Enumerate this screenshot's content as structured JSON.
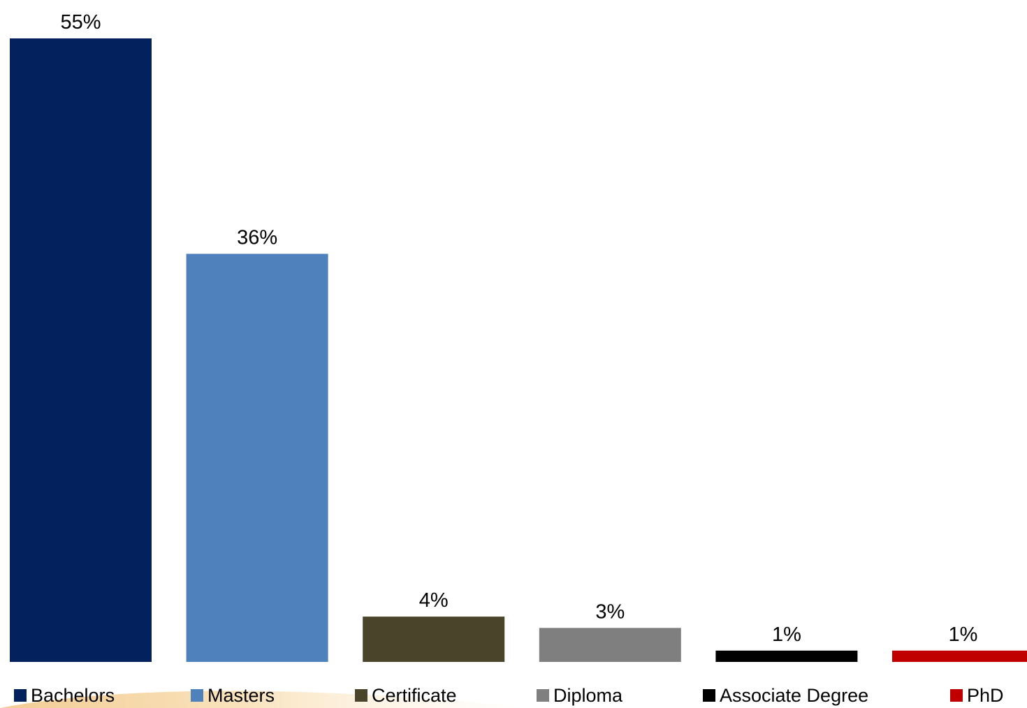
{
  "chart_data": {
    "type": "bar",
    "categories": [
      "Bachelors",
      "Masters",
      "Certificate",
      "Diploma",
      "Associate Degree",
      "PhD"
    ],
    "values": [
      55,
      36,
      4,
      3,
      1,
      1
    ],
    "value_labels": [
      "55%",
      "36%",
      "4%",
      "3%",
      "1%",
      "1%"
    ],
    "colors": [
      "#03215C",
      "#4F81BD",
      "#4A452A",
      "#7F7F7F",
      "#000000",
      "#C00000"
    ],
    "title": "",
    "xlabel": "",
    "ylabel": "",
    "ylim": [
      0,
      55
    ],
    "grid": false,
    "legend_position": "bottom"
  }
}
